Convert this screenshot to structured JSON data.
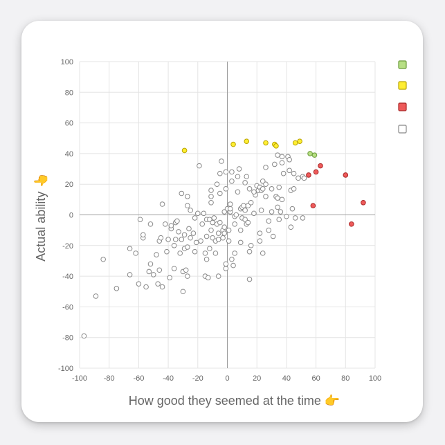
{
  "chart_data": {
    "type": "scatter",
    "xlabel": "How good they seemed at the time 👉",
    "ylabel": "Actual ability 👆",
    "xlim": [
      -100,
      100
    ],
    "ylim": [
      -100,
      100
    ],
    "xticks": [
      "-100",
      "-80",
      "-60",
      "-40",
      "-20",
      "0",
      "20",
      "40",
      "60",
      "80",
      "100"
    ],
    "yticks": [
      "-100",
      "-80",
      "-60",
      "-40",
      "-20",
      "0",
      "20",
      "40",
      "60",
      "80",
      "100"
    ],
    "grid": true,
    "legend_position": "right",
    "series": [
      {
        "color": "#b7df84",
        "stroke": "#6a9a3a",
        "points": [
          [
            56,
            40
          ],
          [
            59,
            39
          ]
        ]
      },
      {
        "color": "#ffee33",
        "stroke": "#b8a300",
        "points": [
          [
            -29,
            42
          ],
          [
            4,
            46
          ],
          [
            13,
            48
          ],
          [
            26,
            47
          ],
          [
            32,
            46
          ],
          [
            33,
            45
          ],
          [
            46,
            47
          ],
          [
            49,
            48
          ]
        ]
      },
      {
        "color": "#ee5a5a",
        "stroke": "#a82626",
        "points": [
          [
            55,
            26
          ],
          [
            60,
            28
          ],
          [
            63,
            32
          ],
          [
            80,
            26
          ],
          [
            92,
            8
          ],
          [
            84,
            -6
          ],
          [
            58,
            6
          ]
        ]
      },
      {
        "color": "#ffffff",
        "stroke": "#888888",
        "points": [
          [
            -97,
            -79
          ],
          [
            -89,
            -53
          ],
          [
            -84,
            -29
          ],
          [
            -75,
            -48
          ],
          [
            -66,
            -39
          ],
          [
            -66,
            -22
          ],
          [
            -62,
            -25
          ],
          [
            -60,
            -45
          ],
          [
            -59,
            -3
          ],
          [
            -57,
            -15
          ],
          [
            -57,
            -13
          ],
          [
            -55,
            -47
          ],
          [
            -52,
            -32
          ],
          [
            -52,
            -6
          ],
          [
            -50,
            -39
          ],
          [
            -48,
            -26
          ],
          [
            -47,
            -45
          ],
          [
            -46,
            -36
          ],
          [
            -46,
            -17
          ],
          [
            -45,
            -15
          ],
          [
            -44,
            -47
          ],
          [
            -44,
            7
          ],
          [
            -42,
            -6
          ],
          [
            -41,
            -24
          ],
          [
            -40,
            -16
          ],
          [
            -39,
            -41
          ],
          [
            -38,
            -9
          ],
          [
            -38,
            -7
          ],
          [
            -36,
            -35
          ],
          [
            -36,
            -20
          ],
          [
            -35,
            -16
          ],
          [
            -35,
            -5
          ],
          [
            -34,
            -4
          ],
          [
            -33,
            -11
          ],
          [
            -32,
            -25
          ],
          [
            -31,
            -16
          ],
          [
            -31,
            14
          ],
          [
            -30,
            -50
          ],
          [
            -30,
            -37
          ],
          [
            -29,
            -22
          ],
          [
            -29,
            -13
          ],
          [
            -28,
            -36
          ],
          [
            -27,
            -40
          ],
          [
            -27,
            -21
          ],
          [
            -27,
            6
          ],
          [
            -27,
            12
          ],
          [
            -26,
            -9
          ],
          [
            -25,
            -15
          ],
          [
            -25,
            3
          ],
          [
            -23,
            -12
          ],
          [
            -22,
            -24
          ],
          [
            -22,
            -2
          ],
          [
            -21,
            -18
          ],
          [
            -20,
            1
          ],
          [
            -19,
            32
          ],
          [
            -17,
            -6
          ],
          [
            -16,
            1
          ],
          [
            -15,
            -40
          ],
          [
            -15,
            -25
          ],
          [
            -14,
            -29
          ],
          [
            -14,
            -14
          ],
          [
            -14,
            -3
          ],
          [
            -13,
            -41
          ],
          [
            -12,
            -22
          ],
          [
            -12,
            -3
          ],
          [
            -11,
            -10
          ],
          [
            -11,
            8
          ],
          [
            -11,
            12
          ],
          [
            -11,
            16
          ],
          [
            -10,
            -15
          ],
          [
            -10,
            -5
          ],
          [
            -9,
            -2
          ],
          [
            -8,
            -25
          ],
          [
            -8,
            -17
          ],
          [
            -7,
            -6
          ],
          [
            -7,
            20
          ],
          [
            -6,
            -40
          ],
          [
            -6,
            -16
          ],
          [
            -6,
            -12
          ],
          [
            -5,
            -5
          ],
          [
            -5,
            14
          ],
          [
            -5,
            27
          ],
          [
            -4,
            35
          ],
          [
            -3,
            -15
          ],
          [
            -3,
            -10
          ],
          [
            -2,
            -12
          ],
          [
            -2,
            -8
          ],
          [
            -2,
            2
          ],
          [
            -1,
            -35
          ],
          [
            -1,
            -32
          ],
          [
            -1,
            17
          ],
          [
            -1,
            28
          ],
          [
            0,
            4
          ],
          [
            1,
            -17
          ],
          [
            1,
            -10
          ],
          [
            2,
            2
          ],
          [
            2,
            4
          ],
          [
            2,
            7
          ],
          [
            3,
            -29
          ],
          [
            3,
            22
          ],
          [
            3,
            28
          ],
          [
            4,
            -33
          ],
          [
            5,
            -25
          ],
          [
            5,
            -6
          ],
          [
            5,
            -1
          ],
          [
            6,
            0
          ],
          [
            7,
            15
          ],
          [
            7,
            25
          ],
          [
            8,
            30
          ],
          [
            9,
            -18
          ],
          [
            9,
            -10
          ],
          [
            9,
            4
          ],
          [
            10,
            -2
          ],
          [
            10,
            5
          ],
          [
            11,
            6
          ],
          [
            12,
            -3
          ],
          [
            12,
            3
          ],
          [
            12,
            21
          ],
          [
            13,
            -6
          ],
          [
            13,
            25
          ],
          [
            14,
            -5
          ],
          [
            14,
            6
          ],
          [
            15,
            -42
          ],
          [
            15,
            -24
          ],
          [
            15,
            17
          ],
          [
            16,
            -20
          ],
          [
            16,
            8
          ],
          [
            18,
            1
          ],
          [
            19,
            13
          ],
          [
            20,
            19
          ],
          [
            21,
            16
          ],
          [
            22,
            -17
          ],
          [
            22,
            -12
          ],
          [
            22,
            18
          ],
          [
            23,
            3
          ],
          [
            23,
            16
          ],
          [
            24,
            -25
          ],
          [
            24,
            17
          ],
          [
            24,
            22
          ],
          [
            26,
            12
          ],
          [
            26,
            20
          ],
          [
            26,
            31
          ],
          [
            28,
            -10
          ],
          [
            28,
            -4
          ],
          [
            30,
            2
          ],
          [
            30,
            17
          ],
          [
            31,
            -14
          ],
          [
            32,
            33
          ],
          [
            33,
            12
          ],
          [
            34,
            5
          ],
          [
            34,
            11
          ],
          [
            34,
            39
          ],
          [
            35,
            -3
          ],
          [
            36,
            2
          ],
          [
            37,
            10
          ],
          [
            37,
            34
          ],
          [
            37,
            38
          ],
          [
            38,
            27
          ],
          [
            40,
            -1
          ],
          [
            41,
            38
          ],
          [
            42,
            29
          ],
          [
            42,
            36
          ],
          [
            43,
            -8
          ],
          [
            43,
            16
          ],
          [
            44,
            4
          ],
          [
            45,
            17
          ],
          [
            45,
            27
          ],
          [
            46,
            -2
          ],
          [
            48,
            24
          ],
          [
            51,
            -2
          ],
          [
            51,
            25
          ],
          [
            52,
            24
          ],
          [
            35,
            18
          ],
          [
            -53,
            -37
          ],
          [
            -18,
            -17
          ],
          [
            18,
            15
          ]
        ]
      }
    ]
  }
}
